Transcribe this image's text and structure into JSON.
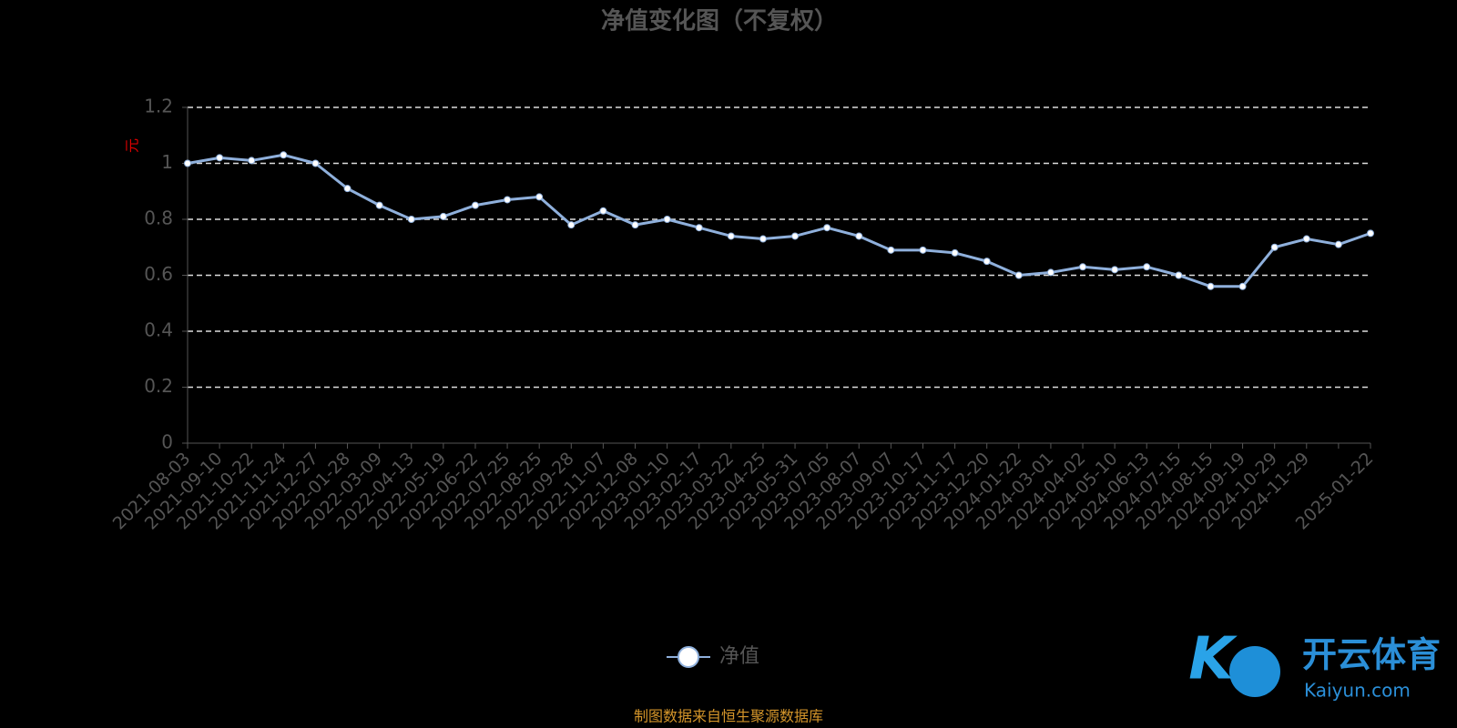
{
  "chart_data": {
    "type": "line",
    "title": "净值变化图（不复权）",
    "y_label": "元",
    "categories": [
      "2021-08-03",
      "2021-09-10",
      "2021-10-22",
      "2021-11-24",
      "2021-12-27",
      "2022-01-28",
      "2022-03-09",
      "2022-04-13",
      "2022-05-19",
      "2022-06-22",
      "2022-07-25",
      "2022-08-25",
      "2022-09-28",
      "2022-11-07",
      "2022-12-08",
      "2023-01-10",
      "2023-02-17",
      "2023-03-22",
      "2023-04-25",
      "2023-05-31",
      "2023-07-05",
      "2023-08-07",
      "2023-09-07",
      "2023-10-17",
      "2023-11-17",
      "2023-12-20",
      "2024-01-22",
      "2024-03-01",
      "2024-04-02",
      "2024-05-10",
      "2024-06-13",
      "2024-07-15",
      "2024-08-15",
      "2024-09-19",
      "2024-10-29",
      "2024-11-29",
      null,
      "2025-01-22"
    ],
    "series": [
      {
        "name": "净值",
        "color": "#8fb0dc",
        "values": [
          1.0,
          1.02,
          1.01,
          1.03,
          1.0,
          0.91,
          0.85,
          0.8,
          0.81,
          0.85,
          0.87,
          0.88,
          0.78,
          0.83,
          0.78,
          0.8,
          0.77,
          0.74,
          0.73,
          0.74,
          0.77,
          0.74,
          0.69,
          0.69,
          0.68,
          0.65,
          0.6,
          0.61,
          0.63,
          0.62,
          0.63,
          0.6,
          0.56,
          0.56,
          0.7,
          0.73,
          0.71,
          0.75
        ]
      }
    ],
    "ylim": [
      0,
      1.2
    ],
    "yticks": [
      0,
      0.2,
      0.4,
      0.6,
      0.8,
      1,
      1.2
    ],
    "grid": true,
    "source": "制图数据来自恒生聚源数据库",
    "watermark": {
      "brand": "开云体育",
      "site": "Kaiyun.com"
    }
  }
}
